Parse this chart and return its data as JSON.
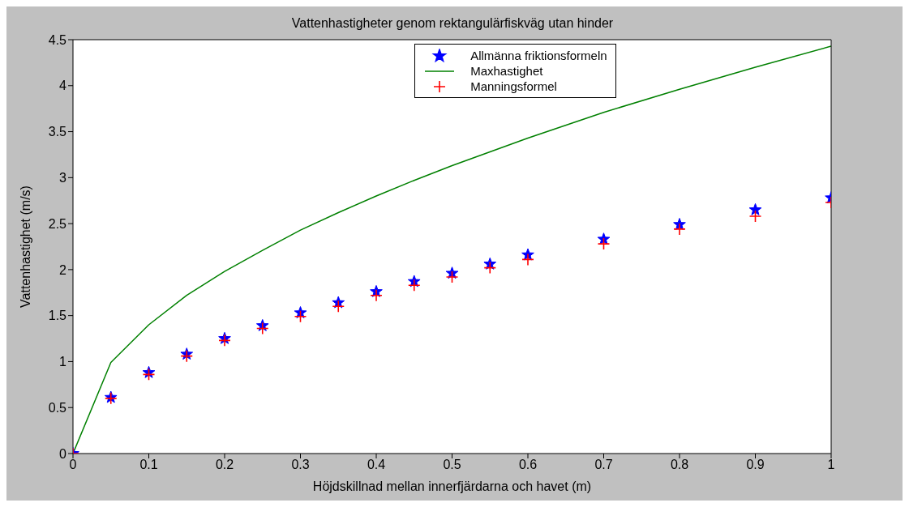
{
  "chart_data": {
    "type": "scatter",
    "title": "Vattenhastigheter genom rektangulärfiskväg utan hinder",
    "xlabel": "Höjdskillnad mellan innerfjärdarna och havet (m)",
    "ylabel": "Vattenhastighet (m/s)",
    "x": [
      0,
      0.05,
      0.1,
      0.15,
      0.2,
      0.25,
      0.3,
      0.35,
      0.4,
      0.45,
      0.5,
      0.55,
      0.6,
      0.7,
      0.8,
      0.9,
      1
    ],
    "xlim": [
      0,
      1
    ],
    "xticks": [
      0,
      0.1,
      0.2,
      0.3,
      0.4,
      0.5,
      0.6,
      0.7,
      0.8,
      0.9,
      1
    ],
    "ylim": [
      0,
      4.5
    ],
    "yticks": [
      0,
      0.5,
      1,
      1.5,
      2,
      2.5,
      3,
      3.5,
      4,
      4.5
    ],
    "legend": "top right",
    "series": [
      {
        "name": "Allmänna friktionsformeln",
        "marker": "star",
        "color": "#0000ff",
        "values": [
          0,
          0.61,
          0.88,
          1.08,
          1.25,
          1.39,
          1.53,
          1.64,
          1.76,
          1.87,
          1.96,
          2.06,
          2.16,
          2.33,
          2.49,
          2.65,
          2.78
        ]
      },
      {
        "name": "Maxhastighet",
        "type": "line",
        "marker": "none",
        "color": "#008000",
        "values": [
          0,
          0.99,
          1.4,
          1.72,
          1.98,
          2.21,
          2.43,
          2.62,
          2.8,
          2.97,
          3.13,
          3.28,
          3.43,
          3.71,
          3.96,
          4.2,
          4.43
        ]
      },
      {
        "name": "Manningsformel",
        "marker": "cross",
        "color": "#ff0000",
        "values": [
          0,
          0.6,
          0.86,
          1.06,
          1.23,
          1.36,
          1.49,
          1.6,
          1.72,
          1.83,
          1.92,
          2.02,
          2.11,
          2.28,
          2.44,
          2.58,
          2.73
        ]
      }
    ]
  }
}
